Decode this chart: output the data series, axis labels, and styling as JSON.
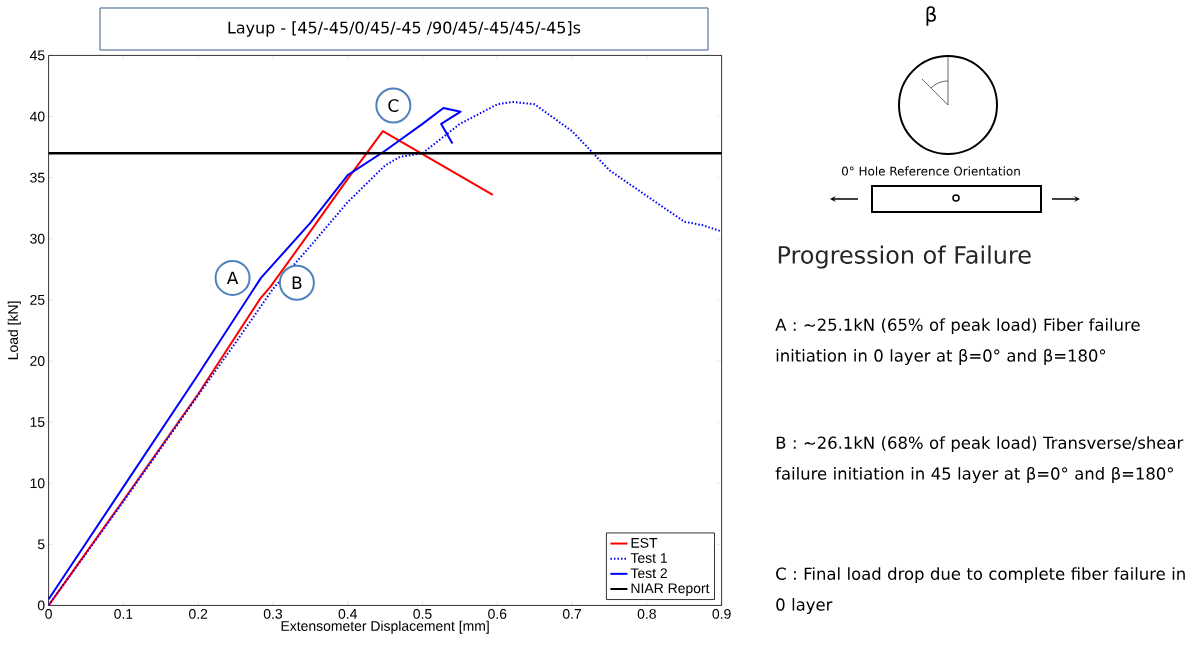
{
  "chart_data": {
    "type": "line",
    "title": "Layup  - [45/-45/0/45/-45  /90/45/-45/45/-45]s",
    "xlabel": "Extensometer Displacement [mm]",
    "ylabel": "Load [kN]",
    "xlim": [
      0,
      0.9
    ],
    "xticks": [
      0,
      0.1,
      0.2,
      0.3,
      0.4,
      0.5,
      0.6,
      0.7,
      0.8,
      0.9
    ],
    "ylim": [
      0,
      45
    ],
    "yticks": [
      0,
      5,
      10,
      15,
      20,
      25,
      30,
      35,
      40,
      45
    ],
    "legend": "bottom right",
    "grid": false,
    "marker": "none",
    "series": [
      {
        "name": "EST",
        "color": "#ff0000",
        "line_style": "solid",
        "x": [
          0,
          0.1,
          0.2,
          0.283,
          0.297,
          0.35,
          0.4,
          0.447,
          0.594
        ],
        "values": [
          0,
          8.6,
          17.3,
          25.1,
          26.1,
          30.6,
          34.9,
          38.8,
          33.6
        ]
      },
      {
        "name": "Test 1",
        "color": "#0000ff",
        "line_style": "dotted",
        "x": [
          0,
          0.1,
          0.2,
          0.25,
          0.3,
          0.35,
          0.4,
          0.45,
          0.47,
          0.5,
          0.55,
          0.6,
          0.62,
          0.65,
          0.7,
          0.75,
          0.8,
          0.85,
          0.875,
          0.9
        ],
        "values": [
          0,
          8.5,
          17.2,
          21.5,
          25.9,
          29.4,
          33.0,
          36.0,
          36.7,
          37.0,
          39.4,
          41.0,
          41.2,
          41.0,
          38.8,
          35.6,
          33.5,
          31.4,
          31.1,
          30.6
        ]
      },
      {
        "name": "Test 2",
        "color": "#0000ff",
        "line_style": "solid",
        "x": [
          0,
          0.1,
          0.2,
          0.284,
          0.35,
          0.4,
          0.45,
          0.5,
          0.528,
          0.551,
          0.525,
          0.54
        ],
        "values": [
          0.5,
          9.7,
          18.9,
          26.8,
          31.3,
          35.2,
          37.2,
          39.4,
          40.7,
          40.4,
          39.4,
          37.8
        ]
      }
    ],
    "ref_lines": [
      {
        "axis": "y",
        "value": 37,
        "label": "NIAR Report",
        "color": "#000000"
      }
    ],
    "annotations": [
      {
        "text": "A",
        "x": 0.246,
        "y": 26.8
      },
      {
        "text": "B",
        "x": 0.332,
        "y": 26.4
      },
      {
        "text": "C",
        "x": 0.461,
        "y": 40.9
      },
      "β",
      "0° Hole Reference  Orientation",
      "Progression of Failure",
      "A : ~25.1kN (65% of peak load) Fiber failure initiation in 0 layer at β=0° and β=180°",
      "B : ~26.1kN (68% of peak load) Transverse/shear failure  initiation in 45 layer at β=0° and β=180°",
      "C : Final load drop due to complete fiber failure in 0 layer"
    ]
  }
}
